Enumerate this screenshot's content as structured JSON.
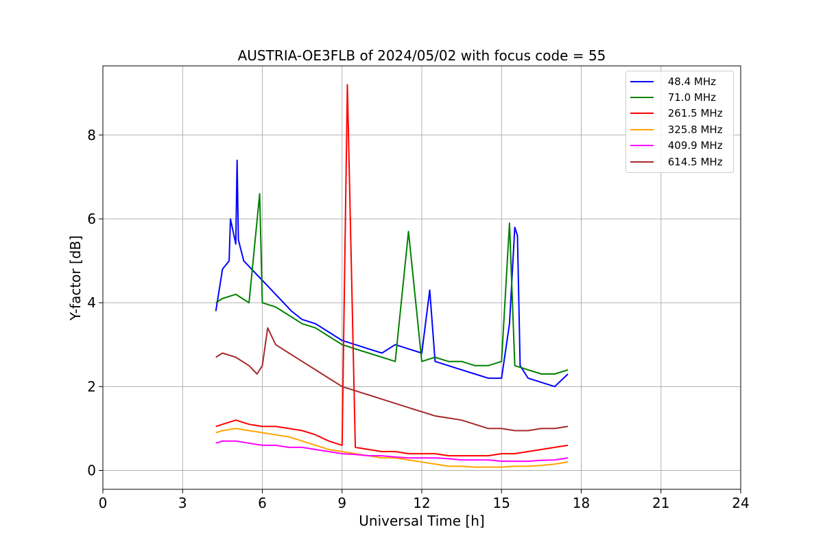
{
  "chart_data": {
    "type": "line",
    "title": "AUSTRIA-OE3FLB of 2024/05/02 with focus code = 55",
    "xlabel": "Universal Time [h]",
    "ylabel": "Y-factor [dB]",
    "xlim": [
      0,
      24
    ],
    "ylim": [
      -0.45,
      9.65
    ],
    "xticks": [
      0,
      3,
      6,
      9,
      12,
      15,
      18,
      21,
      24
    ],
    "yticks": [
      0,
      2,
      4,
      6,
      8
    ],
    "xtick_labels": [
      "0",
      "3",
      "6",
      "9",
      "12",
      "15",
      "18",
      "21",
      "24"
    ],
    "ytick_labels": [
      "0",
      "2",
      "4",
      "6",
      "8"
    ],
    "grid": true,
    "legend_position": "top-right",
    "series": [
      {
        "name": " 48.4 MHz",
        "color": "#0000ff",
        "x": [
          4.25,
          4.5,
          4.75,
          4.8,
          5.0,
          5.05,
          5.1,
          5.3,
          5.6,
          5.9,
          6.2,
          6.5,
          6.8,
          7.1,
          7.5,
          8.0,
          8.5,
          9.0,
          9.5,
          10.0,
          10.5,
          11.0,
          11.5,
          12.0,
          12.3,
          12.5,
          13.0,
          13.5,
          14.0,
          14.5,
          15.0,
          15.3,
          15.5,
          15.6,
          15.7,
          16.0,
          16.5,
          17.0,
          17.5
        ],
        "y": [
          3.8,
          4.8,
          5.0,
          6.0,
          5.4,
          7.4,
          5.5,
          5.0,
          4.8,
          4.6,
          4.4,
          4.2,
          4.0,
          3.8,
          3.6,
          3.5,
          3.3,
          3.1,
          3.0,
          2.9,
          2.8,
          3.0,
          2.9,
          2.8,
          4.3,
          2.6,
          2.5,
          2.4,
          2.3,
          2.2,
          2.2,
          3.5,
          5.8,
          5.6,
          2.5,
          2.2,
          2.1,
          2.0,
          2.3
        ]
      },
      {
        "name": " 71.0 MHz",
        "color": "#008000",
        "x": [
          4.25,
          4.5,
          5.0,
          5.5,
          5.9,
          6.0,
          6.5,
          7.0,
          7.5,
          8.0,
          8.5,
          9.0,
          9.5,
          10.0,
          10.5,
          11.0,
          11.5,
          12.0,
          12.5,
          13.0,
          13.5,
          14.0,
          14.5,
          15.0,
          15.3,
          15.5,
          16.0,
          16.5,
          17.0,
          17.5
        ],
        "y": [
          4.0,
          4.1,
          4.2,
          4.0,
          6.6,
          4.0,
          3.9,
          3.7,
          3.5,
          3.4,
          3.2,
          3.0,
          2.9,
          2.8,
          2.7,
          2.6,
          5.7,
          2.6,
          2.7,
          2.6,
          2.6,
          2.5,
          2.5,
          2.6,
          5.9,
          2.5,
          2.4,
          2.3,
          2.3,
          2.4
        ]
      },
      {
        "name": " 261.5 MHz",
        "color": "#ff0000",
        "x": [
          4.25,
          4.5,
          5.0,
          5.5,
          6.0,
          6.5,
          7.0,
          7.5,
          8.0,
          8.5,
          9.0,
          9.2,
          9.5,
          10.0,
          10.5,
          11.0,
          11.5,
          12.0,
          12.5,
          13.0,
          13.5,
          14.0,
          14.5,
          15.0,
          15.5,
          16.0,
          16.5,
          17.0,
          17.5
        ],
        "y": [
          1.05,
          1.1,
          1.2,
          1.1,
          1.05,
          1.05,
          1.0,
          0.95,
          0.85,
          0.7,
          0.6,
          9.2,
          0.55,
          0.5,
          0.45,
          0.45,
          0.4,
          0.4,
          0.4,
          0.35,
          0.35,
          0.35,
          0.35,
          0.4,
          0.4,
          0.45,
          0.5,
          0.55,
          0.6
        ]
      },
      {
        "name": " 325.8 MHz",
        "color": "#ffa500",
        "x": [
          4.25,
          4.5,
          5.0,
          5.5,
          6.0,
          6.5,
          7.0,
          7.5,
          8.0,
          8.5,
          9.0,
          9.5,
          10.0,
          10.5,
          11.0,
          11.5,
          12.0,
          12.5,
          13.0,
          13.5,
          14.0,
          14.5,
          15.0,
          15.5,
          16.0,
          16.5,
          17.0,
          17.5
        ],
        "y": [
          0.9,
          0.95,
          1.0,
          0.95,
          0.9,
          0.85,
          0.8,
          0.7,
          0.6,
          0.5,
          0.45,
          0.4,
          0.35,
          0.3,
          0.3,
          0.25,
          0.2,
          0.15,
          0.1,
          0.1,
          0.08,
          0.08,
          0.08,
          0.1,
          0.1,
          0.12,
          0.15,
          0.2
        ]
      },
      {
        "name": " 409.9 MHz",
        "color": "#ff00ff",
        "x": [
          4.25,
          4.5,
          5.0,
          5.5,
          6.0,
          6.5,
          7.0,
          7.5,
          8.0,
          8.5,
          9.0,
          9.5,
          10.0,
          10.5,
          11.0,
          11.5,
          12.0,
          12.5,
          13.0,
          13.5,
          14.0,
          14.5,
          15.0,
          15.5,
          16.0,
          16.5,
          17.0,
          17.5
        ],
        "y": [
          0.65,
          0.7,
          0.7,
          0.65,
          0.6,
          0.6,
          0.55,
          0.55,
          0.5,
          0.45,
          0.4,
          0.38,
          0.35,
          0.35,
          0.32,
          0.3,
          0.3,
          0.3,
          0.28,
          0.25,
          0.25,
          0.25,
          0.22,
          0.22,
          0.22,
          0.24,
          0.25,
          0.3
        ]
      },
      {
        "name": " 614.5 MHz",
        "color": "#a52a2a",
        "x": [
          4.25,
          4.5,
          5.0,
          5.5,
          5.8,
          6.0,
          6.2,
          6.5,
          7.0,
          7.5,
          8.0,
          8.5,
          9.0,
          9.5,
          10.0,
          10.5,
          11.0,
          11.5,
          12.0,
          12.5,
          13.0,
          13.5,
          14.0,
          14.5,
          15.0,
          15.5,
          16.0,
          16.5,
          17.0,
          17.5
        ],
        "y": [
          2.7,
          2.8,
          2.7,
          2.5,
          2.3,
          2.5,
          3.4,
          3.0,
          2.8,
          2.6,
          2.4,
          2.2,
          2.0,
          1.9,
          1.8,
          1.7,
          1.6,
          1.5,
          1.4,
          1.3,
          1.25,
          1.2,
          1.1,
          1.0,
          1.0,
          0.95,
          0.95,
          1.0,
          1.0,
          1.05
        ]
      }
    ]
  }
}
